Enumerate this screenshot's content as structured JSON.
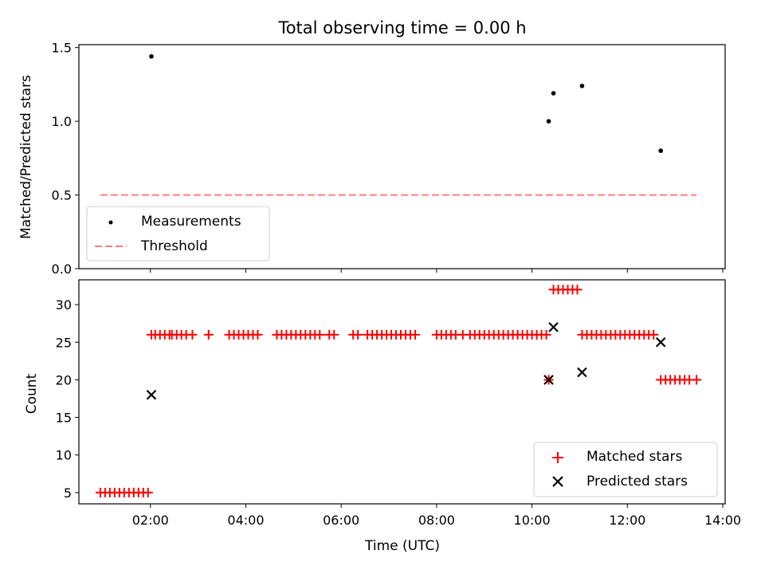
{
  "chart_data": [
    {
      "type": "scatter",
      "title": "Total observing time = 0.00 h",
      "ylabel": "Matched/Predicted stars",
      "xlabel": "",
      "xlim": [
        0.5,
        14.05
      ],
      "ylim": [
        0,
        1.52
      ],
      "yticks": [
        0.0,
        0.5,
        1.0,
        1.5
      ],
      "ytick_labels": [
        "0.0",
        "0.5",
        "1.0",
        "1.5"
      ],
      "xticks": [
        2,
        4,
        6,
        8,
        10,
        12,
        14
      ],
      "grid": false,
      "legend": {
        "placement": "lower-left",
        "entries": [
          "Measurements",
          "Threshold"
        ]
      },
      "threshold": {
        "name": "Threshold",
        "y": 0.5,
        "x": [
          0.95,
          13.45
        ],
        "color": "#ff7f7f"
      },
      "series": [
        {
          "name": "Measurements",
          "color": "#000000",
          "x": [
            2.02,
            10.35,
            10.45,
            11.05,
            12.7
          ],
          "y": [
            1.44,
            1.0,
            1.19,
            1.24,
            0.8
          ]
        }
      ]
    },
    {
      "type": "scatter",
      "xlabel": "Time (UTC)",
      "ylabel": "Count",
      "xlim": [
        0.5,
        14.05
      ],
      "ylim": [
        3.5,
        33.3
      ],
      "yticks": [
        5,
        10,
        15,
        20,
        25,
        30
      ],
      "ytick_labels": [
        "5",
        "10",
        "15",
        "20",
        "25",
        "30"
      ],
      "xticks": [
        2,
        4,
        6,
        8,
        10,
        12,
        14
      ],
      "xtick_labels": [
        "02:00",
        "04:00",
        "06:00",
        "08:00",
        "10:00",
        "12:00",
        "14:00"
      ],
      "grid": false,
      "legend": {
        "placement": "lower-right",
        "entries": [
          "Matched stars",
          "Predicted stars"
        ]
      },
      "series": [
        {
          "name": "Matched stars",
          "color": "#ff0000",
          "x": [
            0.95,
            1.05,
            1.15,
            1.25,
            1.35,
            1.45,
            1.55,
            1.65,
            1.75,
            1.85,
            1.95,
            2.02,
            2.1,
            2.2,
            2.3,
            2.4,
            2.45,
            2.55,
            2.65,
            2.75,
            2.88,
            3.22,
            3.65,
            3.75,
            3.85,
            3.95,
            4.05,
            4.15,
            4.25,
            4.65,
            4.75,
            4.85,
            4.95,
            5.05,
            5.15,
            5.25,
            5.35,
            5.45,
            5.55,
            5.75,
            5.85,
            6.25,
            6.35,
            6.55,
            6.65,
            6.75,
            6.85,
            6.95,
            7.05,
            7.15,
            7.25,
            7.35,
            7.45,
            7.55,
            8.0,
            8.1,
            8.2,
            8.3,
            8.4,
            8.55,
            8.7,
            8.8,
            8.9,
            9.0,
            9.1,
            9.2,
            9.3,
            9.4,
            9.5,
            9.6,
            9.7,
            9.8,
            9.9,
            10.0,
            10.1,
            10.2,
            10.3,
            10.35,
            10.45,
            10.55,
            10.65,
            10.75,
            10.85,
            10.95,
            11.05,
            11.15,
            11.25,
            11.35,
            11.45,
            11.55,
            11.65,
            11.75,
            11.85,
            11.95,
            12.05,
            12.15,
            12.25,
            12.35,
            12.45,
            12.55,
            12.7,
            12.8,
            12.9,
            13.0,
            13.1,
            13.2,
            13.3,
            13.45
          ],
          "y": [
            5,
            5,
            5,
            5,
            5,
            5,
            5,
            5,
            5,
            5,
            5,
            26,
            26,
            26,
            26,
            26,
            26,
            26,
            26,
            26,
            26,
            26,
            26,
            26,
            26,
            26,
            26,
            26,
            26,
            26,
            26,
            26,
            26,
            26,
            26,
            26,
            26,
            26,
            26,
            26,
            26,
            26,
            26,
            26,
            26,
            26,
            26,
            26,
            26,
            26,
            26,
            26,
            26,
            26,
            26,
            26,
            26,
            26,
            26,
            26,
            26,
            26,
            26,
            26,
            26,
            26,
            26,
            26,
            26,
            26,
            26,
            26,
            26,
            26,
            26,
            26,
            26,
            20,
            32,
            32,
            32,
            32,
            32,
            32,
            26,
            26,
            26,
            26,
            26,
            26,
            26,
            26,
            26,
            26,
            26,
            26,
            26,
            26,
            26,
            26,
            20,
            20,
            20,
            20,
            20,
            20,
            20,
            20
          ]
        },
        {
          "name": "Predicted stars",
          "color": "#000000",
          "x": [
            2.02,
            10.35,
            10.45,
            11.05,
            12.7
          ],
          "y": [
            18,
            20,
            27,
            21,
            25
          ]
        }
      ]
    }
  ]
}
